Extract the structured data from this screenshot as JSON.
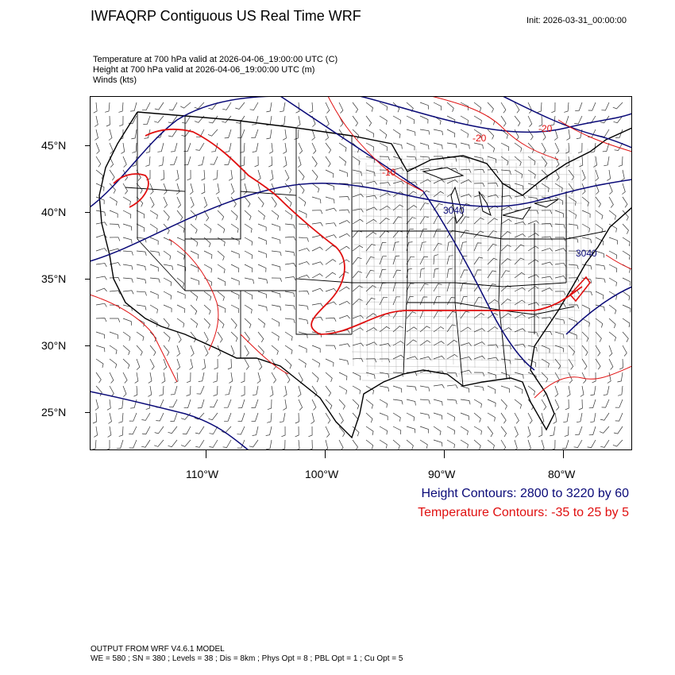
{
  "title": "IWFAQRP Contiguous US Real Time WRF",
  "init": "Init: 2026-03-31_00:00:00",
  "fields": [
    "Temperature at 700 hPa valid at 2026-04-06_19:00:00 UTC   (C)",
    "Height at 700 hPa valid at 2026-04-06_19:00:00 UTC   (m)",
    "Winds   (kts)"
  ],
  "lat_labels": [
    "45°N",
    "40°N",
    "35°N",
    "30°N",
    "25°N"
  ],
  "lon_labels": [
    "110°W",
    "100°W",
    "90°W",
    "80°W"
  ],
  "contour_labels": {
    "height": [
      "3040",
      "3040"
    ],
    "temperature": [
      "-20",
      "-20",
      "-10"
    ]
  },
  "legend": {
    "height": "Height Contours: 2800 to 3220 by 60",
    "temperature": "Temperature Contours: -35 to 25 by 5"
  },
  "footer": {
    "line1": "OUTPUT FROM WRF V4.6.1 MODEL",
    "line2": "WE = 580 ; SN = 380 ; Levels = 38 ; Dis = 8km ; Phys Opt = 8 ; PBL Opt = 1 ; Cu Opt = 5"
  },
  "colors": {
    "height": "#0a0a78",
    "temperature": "#e01010",
    "barbs": "#333333",
    "borders": "#000000"
  }
}
